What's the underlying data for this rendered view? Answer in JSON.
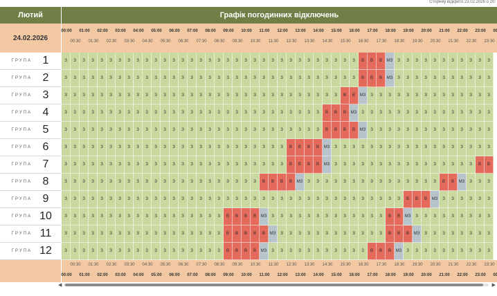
{
  "page_note": "Сторінку відкрито 23.02.2026 о 20:",
  "month": "Лютий",
  "title": "Графік погодинних відключень",
  "date": "24.02.2026",
  "group_label": "ГРУПА",
  "hours": [
    "00",
    "01",
    "02",
    "03",
    "04",
    "05",
    "06",
    "07",
    "08",
    "09",
    "10",
    "11",
    "12",
    "13",
    "14",
    "15",
    "16",
    "17",
    "18",
    "19",
    "20",
    "21",
    "22",
    "23",
    "00"
  ],
  "half_hours": [
    "00:30",
    "01:30",
    "02:30",
    "03:30",
    "04:30",
    "05:30",
    "06:30",
    "07:30",
    "08:30",
    "09:30",
    "10:30",
    "11:30",
    "12:30",
    "13:30",
    "14:30",
    "15:30",
    "16:30",
    "17:30",
    "18:30",
    "19:30",
    "20:30",
    "21:30",
    "22:30",
    "23:30"
  ],
  "status_text": {
    "on": "З",
    "off": "В",
    "maybe": "МЗ"
  },
  "colors": {
    "header": "#6f7f45",
    "peach": "#f3c9a3",
    "on": "#c9d9a0",
    "off": "#e46b5c",
    "maybe": "#b8c4cc"
  },
  "groups": [
    {
      "number": "1",
      "off": [
        {
          "from": 33,
          "to": 36
        }
      ],
      "maybe": [
        36
      ]
    },
    {
      "number": "2",
      "off": [
        {
          "from": 33,
          "to": 35
        }
      ],
      "maybe": [
        36
      ]
    },
    {
      "number": "3",
      "off": [
        {
          "from": 31,
          "to": 32
        }
      ],
      "maybe": [
        33
      ]
    },
    {
      "number": "4",
      "off": [
        {
          "from": 29,
          "to": 31
        }
      ],
      "maybe": [
        32
      ]
    },
    {
      "number": "5",
      "off": [
        {
          "from": 29,
          "to": 32
        }
      ],
      "maybe": [
        33
      ]
    },
    {
      "number": "6",
      "off": [
        {
          "from": 25,
          "to": 28
        }
      ],
      "maybe": [
        29
      ]
    },
    {
      "number": "7",
      "off": [
        {
          "from": 25,
          "to": 28
        },
        {
          "from": 46,
          "to": 47
        }
      ],
      "maybe": [
        29
      ]
    },
    {
      "number": "8",
      "off": [
        {
          "from": 22,
          "to": 25
        },
        {
          "from": 42,
          "to": 43
        }
      ],
      "maybe": [
        26,
        44
      ]
    },
    {
      "number": "9",
      "off": [
        {
          "from": 38,
          "to": 40
        }
      ],
      "maybe": [
        41
      ]
    },
    {
      "number": "10",
      "off": [
        {
          "from": 18,
          "to": 21
        },
        {
          "from": 36,
          "to": 37
        }
      ],
      "maybe": [
        22,
        38
      ]
    },
    {
      "number": "11",
      "off": [
        {
          "from": 18,
          "to": 22
        },
        {
          "from": 36,
          "to": 38
        }
      ],
      "maybe": [
        23,
        39
      ]
    },
    {
      "number": "12",
      "off": [
        {
          "from": 18,
          "to": 21
        },
        {
          "from": 34,
          "to": 36
        }
      ],
      "maybe": [
        22,
        37
      ]
    }
  ]
}
